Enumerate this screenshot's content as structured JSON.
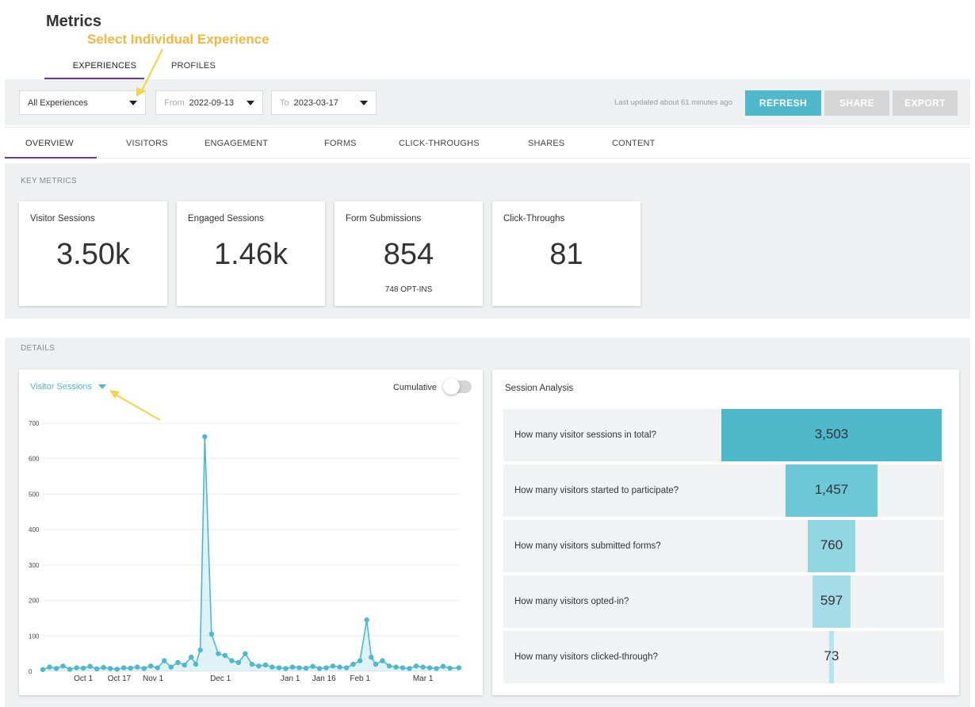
{
  "header": {
    "title": "Metrics",
    "annotation": "Select Individual Experience"
  },
  "top_tabs": [
    {
      "label": "EXPERIENCES",
      "active": true
    },
    {
      "label": "PROFILES",
      "active": false
    }
  ],
  "toolbar": {
    "experience_select": "All Experiences",
    "from_label": "From",
    "from_value": "2022-09-13",
    "to_label": "To",
    "to_value": "2023-03-17",
    "last_updated": "Last updated about 61 minutes ago",
    "refresh_label": "REFRESH",
    "share_label": "SHARE",
    "export_label": "EXPORT",
    "accent_color": "#4fb8cb",
    "disabled_color": "#d6d6d6"
  },
  "sub_tabs": [
    "OVERVIEW",
    "VISITORS",
    "ENGAGEMENT",
    "FORMS",
    "CLICK-THROUGHS",
    "SHARES",
    "CONTENT"
  ],
  "key_metrics": {
    "label": "KEY METRICS",
    "cards": [
      {
        "label": "Visitor Sessions",
        "value": "3.50k",
        "sub": ""
      },
      {
        "label": "Engaged Sessions",
        "value": "1.46k",
        "sub": ""
      },
      {
        "label": "Form Submissions",
        "value": "854",
        "sub": "748 OPT-INS"
      },
      {
        "label": "Click-Throughs",
        "value": "81",
        "sub": ""
      }
    ]
  },
  "details": {
    "label": "DETAILS",
    "chart_selector": "Visitor Sessions",
    "cumulative_label": "Cumulative",
    "cumulative_on": false
  },
  "chart_data": {
    "type": "line",
    "title": "",
    "xlabel": "",
    "ylabel": "",
    "ylim": [
      0,
      700
    ],
    "yticks": [
      0,
      100,
      200,
      300,
      400,
      500,
      600,
      700
    ],
    "xtick_labels": [
      "Oct 1",
      "Oct 17",
      "Nov 1",
      "Dec 1",
      "Jan 1",
      "Jan 16",
      "Feb 1",
      "Mar 1"
    ],
    "grid": true,
    "series": [
      {
        "color": "#4fb8cb",
        "x": [
          "2022-09-13",
          "2022-09-16",
          "2022-09-19",
          "2022-09-22",
          "2022-09-25",
          "2022-09-28",
          "2022-10-01",
          "2022-10-04",
          "2022-10-07",
          "2022-10-10",
          "2022-10-13",
          "2022-10-16",
          "2022-10-19",
          "2022-10-22",
          "2022-10-25",
          "2022-10-28",
          "2022-10-31",
          "2022-11-03",
          "2022-11-06",
          "2022-11-09",
          "2022-11-12",
          "2022-11-15",
          "2022-11-18",
          "2022-11-20",
          "2022-11-22",
          "2022-11-24",
          "2022-11-27",
          "2022-11-30",
          "2022-12-03",
          "2022-12-06",
          "2022-12-09",
          "2022-12-12",
          "2022-12-15",
          "2022-12-18",
          "2022-12-21",
          "2022-12-24",
          "2022-12-27",
          "2022-12-30",
          "2023-01-02",
          "2023-01-05",
          "2023-01-08",
          "2023-01-11",
          "2023-01-14",
          "2023-01-17",
          "2023-01-20",
          "2023-01-23",
          "2023-01-26",
          "2023-01-29",
          "2023-02-01",
          "2023-02-04",
          "2023-02-06",
          "2023-02-08",
          "2023-02-11",
          "2023-02-14",
          "2023-02-17",
          "2023-02-20",
          "2023-02-23",
          "2023-02-26",
          "2023-03-01",
          "2023-03-04",
          "2023-03-07",
          "2023-03-10",
          "2023-03-13",
          "2023-03-17"
        ],
        "y": [
          5,
          12,
          8,
          15,
          6,
          10,
          9,
          14,
          7,
          11,
          8,
          6,
          10,
          9,
          12,
          8,
          15,
          10,
          30,
          12,
          25,
          18,
          40,
          20,
          60,
          662,
          105,
          50,
          45,
          30,
          25,
          50,
          20,
          15,
          18,
          12,
          10,
          8,
          12,
          10,
          9,
          14,
          8,
          10,
          15,
          12,
          10,
          20,
          30,
          145,
          40,
          20,
          30,
          15,
          12,
          10,
          8,
          15,
          12,
          10,
          8,
          14,
          9,
          10
        ]
      }
    ]
  },
  "session_analysis": {
    "title": "Session Analysis",
    "max": 3503,
    "rows": [
      {
        "question": "How many visitor sessions in total?",
        "value": 3503,
        "display": "3,503",
        "color": "#4fb8cb"
      },
      {
        "question": "How many visitors started to participate?",
        "value": 1457,
        "display": "1,457",
        "color": "#6cc7d6"
      },
      {
        "question": "How many visitors submitted forms?",
        "value": 760,
        "display": "760",
        "color": "#92d6e1"
      },
      {
        "question": "How many visitors opted-in?",
        "value": 597,
        "display": "597",
        "color": "#a4dde7"
      },
      {
        "question": "How many visitors clicked-through?",
        "value": 73,
        "display": "73",
        "color": "#b8e5ec"
      }
    ]
  }
}
